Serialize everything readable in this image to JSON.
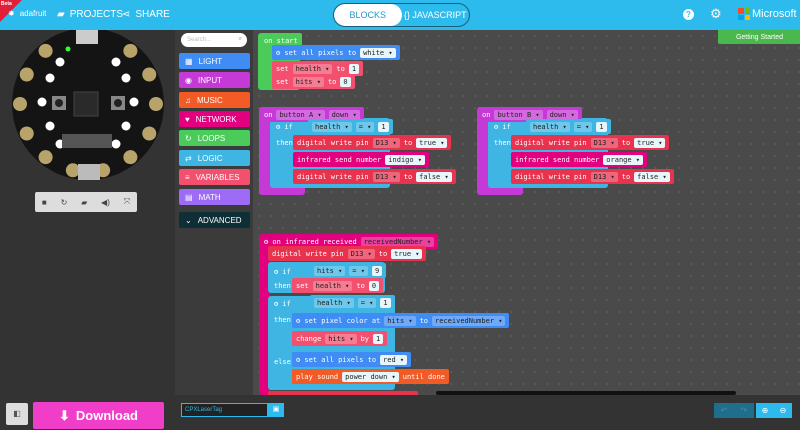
{
  "header": {
    "beta": "Beta",
    "logo": "adafruit",
    "projects": "PROJECTS",
    "share": "SHARE",
    "tabs": [
      {
        "label": "BLOCKS",
        "active": true
      },
      {
        "label": "{} JAVASCRIPT",
        "active": false
      }
    ],
    "brand": "Microsoft",
    "icons": [
      "help-icon",
      "gear-icon"
    ]
  },
  "getting_started": "Getting Started",
  "search": {
    "placeholder": "Search..."
  },
  "toolbox": [
    {
      "label": "LIGHT",
      "color": "#3f8cf4",
      "icon": "▦"
    },
    {
      "label": "INPUT",
      "color": "#c539d6",
      "icon": "◉"
    },
    {
      "label": "MUSIC",
      "color": "#f25a26",
      "icon": "♫"
    },
    {
      "label": "NETWORK",
      "color": "#e3007f",
      "icon": "♥"
    },
    {
      "label": "LOOPS",
      "color": "#4bcb5a",
      "icon": "↻"
    },
    {
      "label": "LOGIC",
      "color": "#3fb5e4",
      "icon": "⇄"
    },
    {
      "label": "VARIABLES",
      "color": "#f2506e",
      "icon": "≡"
    },
    {
      "label": "MATH",
      "color": "#9d6bf5",
      "icon": "▤"
    },
    {
      "label": "ADVANCED",
      "color": "#0d2f35",
      "icon": "⌄"
    }
  ],
  "colors": {
    "light": "#3f8cf4",
    "input": "#c539d6",
    "music": "#f25a26",
    "network": "#e3007f",
    "loops": "#4bcb5a",
    "logic": "#3fb5e4",
    "variables": "#f2506e",
    "pins": "#e8334f"
  },
  "blocks": [
    {
      "c": "loops",
      "p": [
        {
          "t": "on start"
        }
      ]
    },
    {
      "c": "light",
      "p": [
        {
          "t": "⚙ set all pixels to"
        },
        {
          "f": "white ▾",
          "w": 1
        }
      ]
    },
    {
      "c": "variables",
      "p": [
        {
          "t": "set"
        },
        {
          "f": "health ▾"
        },
        {
          "t": "to"
        },
        {
          "f": "1",
          "w": 1
        }
      ]
    },
    {
      "c": "variables",
      "p": [
        {
          "t": "set"
        },
        {
          "f": "hits ▾"
        },
        {
          "t": "to"
        },
        {
          "f": "0",
          "w": 1
        }
      ]
    },
    {
      "c": "input",
      "p": [
        {
          "t": "on"
        },
        {
          "f": "button A ▾"
        },
        {
          "f": "down ▾"
        }
      ]
    },
    {
      "c": "logic",
      "p": [
        {
          "t": "⚙ if"
        }
      ]
    },
    {
      "c": "logic",
      "p": [
        {
          "f": "health ▾"
        },
        {
          "f": "= ▾"
        },
        {
          "f": "1",
          "w": 1
        }
      ]
    },
    {
      "c": "logic",
      "p": [
        {
          "t": "then"
        }
      ]
    },
    {
      "c": "pins",
      "p": [
        {
          "t": "digital write pin"
        },
        {
          "f": "D13 ▾"
        },
        {
          "t": "to"
        },
        {
          "f": "true ▾",
          "w": 1
        }
      ]
    },
    {
      "c": "network",
      "p": [
        {
          "t": "infrared send number"
        },
        {
          "f": "indigo ▾",
          "w": 1
        }
      ]
    },
    {
      "c": "pins",
      "p": [
        {
          "t": "digital write pin"
        },
        {
          "f": "D13 ▾"
        },
        {
          "t": "to"
        },
        {
          "f": "false ▾",
          "w": 1
        }
      ]
    },
    {
      "c": "input",
      "p": [
        {
          "t": "on"
        },
        {
          "f": "button B ▾"
        },
        {
          "f": "down ▾"
        }
      ]
    },
    {
      "c": "logic",
      "p": [
        {
          "t": "⚙ if"
        }
      ]
    },
    {
      "c": "logic",
      "p": [
        {
          "f": "health ▾"
        },
        {
          "f": "= ▾"
        },
        {
          "f": "1",
          "w": 1
        }
      ]
    },
    {
      "c": "logic",
      "p": [
        {
          "t": "then"
        }
      ]
    },
    {
      "c": "pins",
      "p": [
        {
          "t": "digital write pin"
        },
        {
          "f": "D13 ▾"
        },
        {
          "t": "to"
        },
        {
          "f": "true ▾",
          "w": 1
        }
      ]
    },
    {
      "c": "network",
      "p": [
        {
          "t": "infrared send number"
        },
        {
          "f": "orange ▾",
          "w": 1
        }
      ]
    },
    {
      "c": "pins",
      "p": [
        {
          "t": "digital write pin"
        },
        {
          "f": "D13 ▾"
        },
        {
          "t": "to"
        },
        {
          "f": "false ▾",
          "w": 1
        }
      ]
    },
    {
      "c": "network",
      "p": [
        {
          "t": "⚙ on infrared received"
        },
        {
          "f": "receivedNumber ▾"
        }
      ]
    },
    {
      "c": "pins",
      "p": [
        {
          "t": "digital write pin"
        },
        {
          "f": "D13 ▾"
        },
        {
          "t": "to"
        },
        {
          "f": "true ▾",
          "w": 1
        }
      ]
    },
    {
      "c": "logic",
      "p": [
        {
          "t": "⚙ if"
        }
      ]
    },
    {
      "c": "logic",
      "p": [
        {
          "f": "hits ▾"
        },
        {
          "f": "= ▾"
        },
        {
          "f": "9",
          "w": 1
        }
      ]
    },
    {
      "c": "logic",
      "p": [
        {
          "t": "then"
        }
      ]
    },
    {
      "c": "variables",
      "p": [
        {
          "t": "set"
        },
        {
          "f": "health ▾"
        },
        {
          "t": "to"
        },
        {
          "f": "0",
          "w": 1
        }
      ]
    },
    {
      "c": "logic",
      "p": [
        {
          "t": "⚙ if"
        }
      ]
    },
    {
      "c": "logic",
      "p": [
        {
          "f": "health ▾"
        },
        {
          "f": "= ▾"
        },
        {
          "f": "1",
          "w": 1
        }
      ]
    },
    {
      "c": "logic",
      "p": [
        {
          "t": "then"
        }
      ]
    },
    {
      "c": "light",
      "p": [
        {
          "t": "⚙ set pixel color at"
        },
        {
          "f": "hits ▾"
        },
        {
          "t": "to"
        },
        {
          "f": "receivedNumber ▾"
        }
      ]
    },
    {
      "c": "variables",
      "p": [
        {
          "t": "change"
        },
        {
          "f": "hits ▾"
        },
        {
          "t": "by"
        },
        {
          "f": "1",
          "w": 1
        }
      ]
    },
    {
      "c": "logic",
      "p": [
        {
          "t": "else"
        }
      ]
    },
    {
      "c": "light",
      "p": [
        {
          "t": "⚙ set all pixels to"
        },
        {
          "f": "red ▾",
          "w": 1
        }
      ]
    },
    {
      "c": "music",
      "p": [
        {
          "t": "play sound"
        },
        {
          "f": "power down ▾",
          "w": 1
        },
        {
          "t": "until done"
        }
      ]
    }
  ],
  "footer": {
    "download": "Download",
    "project_name": "CPXLaserTag"
  }
}
